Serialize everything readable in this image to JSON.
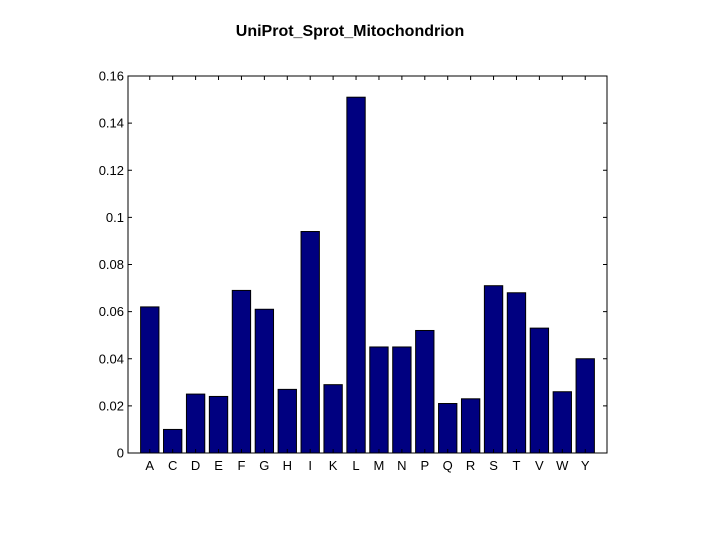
{
  "chart_data": {
    "type": "bar",
    "title": "UniProt_Sprot_Mitochondrion",
    "xlabel": "",
    "ylabel": "",
    "categories": [
      "A",
      "C",
      "D",
      "E",
      "F",
      "G",
      "H",
      "I",
      "K",
      "L",
      "M",
      "N",
      "P",
      "Q",
      "R",
      "S",
      "T",
      "V",
      "W",
      "Y"
    ],
    "values": [
      0.062,
      0.01,
      0.025,
      0.024,
      0.069,
      0.061,
      0.027,
      0.094,
      0.029,
      0.151,
      0.045,
      0.045,
      0.052,
      0.021,
      0.023,
      0.071,
      0.068,
      0.053,
      0.026,
      0.04
    ],
    "ylim": [
      0,
      0.16
    ],
    "yticks": [
      0,
      0.02,
      0.04,
      0.06,
      0.08,
      0.1,
      0.12,
      0.14,
      0.16
    ],
    "ytick_labels": [
      "0",
      "0.02",
      "0.04",
      "0.06",
      "0.08",
      "0.1",
      "0.12",
      "0.14",
      "0.16"
    ],
    "grid": false,
    "bar_color": "#000080",
    "axis_color": "#000000"
  }
}
